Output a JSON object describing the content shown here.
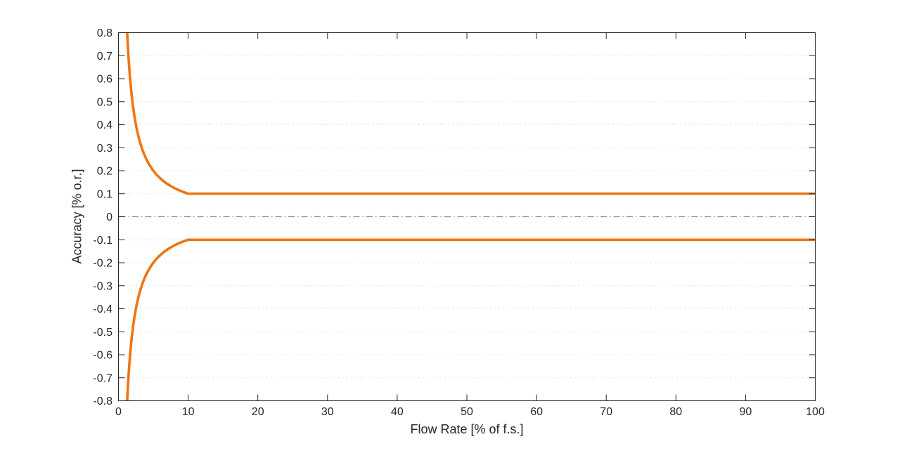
{
  "figure": {
    "background": "#ffffff",
    "axis_color": "#262626",
    "tick_label_color": "#262626"
  },
  "chart_data": {
    "type": "line",
    "title": "",
    "xlabel": "Flow Rate [% of f.s.]",
    "ylabel": "Accuracy [% o.r.]",
    "xlim": [
      0,
      100
    ],
    "ylim": [
      -0.8,
      0.8
    ],
    "x_ticks": {
      "values": [
        0,
        10,
        20,
        30,
        40,
        50,
        60,
        70,
        80,
        90,
        100
      ],
      "labels": [
        "0",
        "10",
        "20",
        "30",
        "40",
        "50",
        "60",
        "70",
        "80",
        "90",
        "100"
      ]
    },
    "y_ticks": {
      "values": [
        0.8,
        0.7,
        0.6,
        0.5,
        0.4,
        0.3,
        0.2,
        0.1,
        0,
        -0.1,
        -0.2,
        -0.3,
        -0.4,
        -0.5,
        -0.6,
        -0.7,
        -0.8
      ],
      "labels": [
        "0.8",
        "0.7",
        "0.6",
        "0.5",
        "0.4",
        "0.3",
        "0.2",
        "0.1",
        "0",
        "-0.1",
        "-0.2",
        "-0.3",
        "-0.4",
        "-0.5",
        "-0.6",
        "-0.7",
        "-0.8"
      ]
    },
    "grid": {
      "horizontal": true,
      "vertical": false,
      "style": "dotted",
      "color": "#d2d2d2"
    },
    "zero_line": {
      "y": 0,
      "style": "dash-dot",
      "color": "#8a8a8a",
      "width": 1.2
    },
    "series": [
      {
        "id": "upper-accuracy-limit",
        "color": "#ED7514",
        "width": 3.6,
        "points": [
          [
            1.25,
            0.8
          ],
          [
            1.35,
            0.7407
          ],
          [
            1.45,
            0.6897
          ],
          [
            1.55,
            0.6452
          ],
          [
            1.65,
            0.6061
          ],
          [
            1.8,
            0.5556
          ],
          [
            1.95,
            0.5128
          ],
          [
            2.1,
            0.4762
          ],
          [
            2.3,
            0.4348
          ],
          [
            2.5,
            0.4
          ],
          [
            2.7,
            0.3704
          ],
          [
            2.9,
            0.3448
          ],
          [
            3.1,
            0.3226
          ],
          [
            3.4,
            0.2941
          ],
          [
            3.7,
            0.2703
          ],
          [
            4.0,
            0.25
          ],
          [
            4.4,
            0.2273
          ],
          [
            4.8,
            0.2083
          ],
          [
            5.2,
            0.1923
          ],
          [
            5.6,
            0.1786
          ],
          [
            6.0,
            0.1667
          ],
          [
            6.5,
            0.1538
          ],
          [
            7.0,
            0.1429
          ],
          [
            7.5,
            0.1333
          ],
          [
            8.0,
            0.125
          ],
          [
            8.5,
            0.1176
          ],
          [
            9.0,
            0.1111
          ],
          [
            9.5,
            0.1053
          ],
          [
            10.0,
            0.1
          ],
          [
            100.0,
            0.1
          ]
        ]
      },
      {
        "id": "lower-accuracy-limit",
        "color": "#ED7514",
        "width": 3.6,
        "points": [
          [
            1.25,
            -0.8
          ],
          [
            1.35,
            -0.7407
          ],
          [
            1.45,
            -0.6897
          ],
          [
            1.55,
            -0.6452
          ],
          [
            1.65,
            -0.6061
          ],
          [
            1.8,
            -0.5556
          ],
          [
            1.95,
            -0.5128
          ],
          [
            2.1,
            -0.4762
          ],
          [
            2.3,
            -0.4348
          ],
          [
            2.5,
            -0.4
          ],
          [
            2.7,
            -0.3704
          ],
          [
            2.9,
            -0.3448
          ],
          [
            3.1,
            -0.3226
          ],
          [
            3.4,
            -0.2941
          ],
          [
            3.7,
            -0.2703
          ],
          [
            4.0,
            -0.25
          ],
          [
            4.4,
            -0.2273
          ],
          [
            4.8,
            -0.2083
          ],
          [
            5.2,
            -0.1923
          ],
          [
            5.6,
            -0.1786
          ],
          [
            6.0,
            -0.1667
          ],
          [
            6.5,
            -0.1538
          ],
          [
            7.0,
            -0.1429
          ],
          [
            7.5,
            -0.1333
          ],
          [
            8.0,
            -0.125
          ],
          [
            8.5,
            -0.1176
          ],
          [
            9.0,
            -0.1111
          ],
          [
            9.5,
            -0.1053
          ],
          [
            10.0,
            -0.1
          ],
          [
            100.0,
            -0.1
          ]
        ]
      }
    ]
  }
}
